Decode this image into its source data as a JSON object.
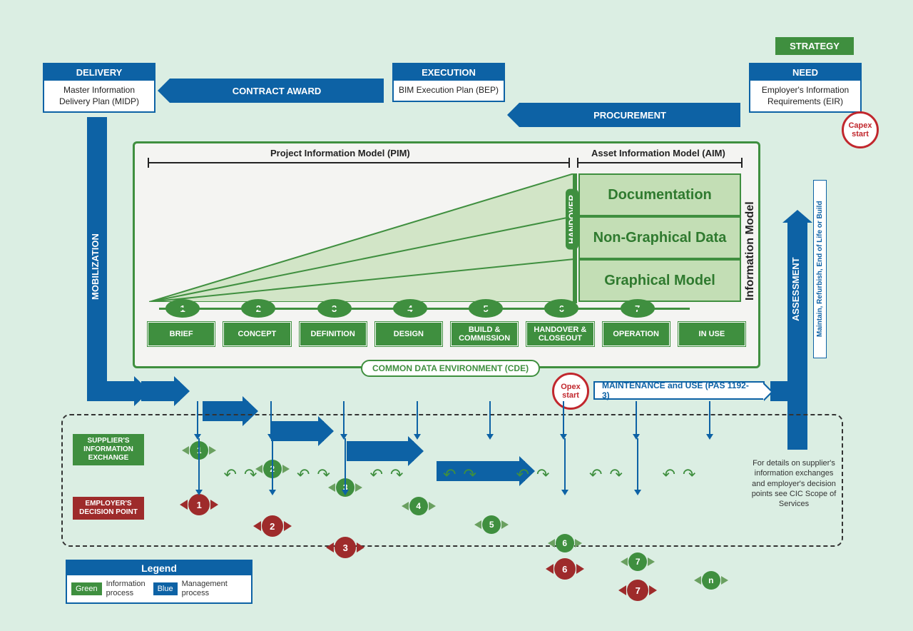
{
  "colors": {
    "blue": "#0d62a5",
    "green": "#3f8f3f",
    "red": "#9e2b2b",
    "bg": "#dbeee3",
    "band": "#c3deb5"
  },
  "strategy": "STRATEGY",
  "top": {
    "delivery": {
      "hdr": "DELIVERY",
      "body": "Master Information Delivery Plan (MIDP)"
    },
    "execution": {
      "hdr": "EXECUTION",
      "body": "BIM Execution Plan (BEP)"
    },
    "need": {
      "hdr": "NEED",
      "body": "Employer's Information Requirements (EIR)"
    }
  },
  "arrows": {
    "contract": "CONTRACT AWARD",
    "procurement": "PROCUREMENT",
    "mobilization": "MOBILIZATION",
    "assessment": "ASSESSMENT"
  },
  "capex": "Capex start",
  "opex": "Opex start",
  "models": {
    "pim": "Project Information Model (PIM)",
    "aim": "Asset Information Model (AIM)",
    "info": "Information Model",
    "handover": "HANDOVER"
  },
  "bands": {
    "doc": "Documentation",
    "ngd": "Non-Graphical Data",
    "gm": "Graphical Model"
  },
  "phases": [
    {
      "n": "1",
      "label": "BRIEF"
    },
    {
      "n": "2",
      "label": "CONCEPT"
    },
    {
      "n": "3",
      "label": "DEFINITION"
    },
    {
      "n": "4",
      "label": "DESIGN"
    },
    {
      "n": "5",
      "label": "BUILD & COMMISSION"
    },
    {
      "n": "6",
      "label": "HANDOVER & CLOSEOUT"
    },
    {
      "n": "7",
      "label": "OPERATION"
    },
    {
      "n": "",
      "label": "IN USE"
    }
  ],
  "cde": "COMMON DATA ENVIRONMENT (CDE)",
  "maint": "MAINTENANCE and USE (PAS 1192-3)",
  "exchange": {
    "supplier": "SUPPLIER'S INFORMATION EXCHANGE",
    "employer": "EMPLOYER'S DECISION POINT",
    "green": [
      "1",
      "2",
      "3",
      "4",
      "5",
      "6",
      "7",
      "n"
    ],
    "red": [
      "1",
      "2",
      "3",
      "6",
      "7"
    ],
    "red_slots": [
      0,
      1,
      2,
      5,
      6
    ],
    "note": "For details on supplier's information exchanges and employer's decision points see CIC Scope of Services"
  },
  "rightnote": "Maintain, Refurbish, End of Life or Build",
  "legend": {
    "title": "Legend",
    "g": "Green",
    "gtxt": "Information process",
    "b": "Blue",
    "btxt": "Management process"
  }
}
